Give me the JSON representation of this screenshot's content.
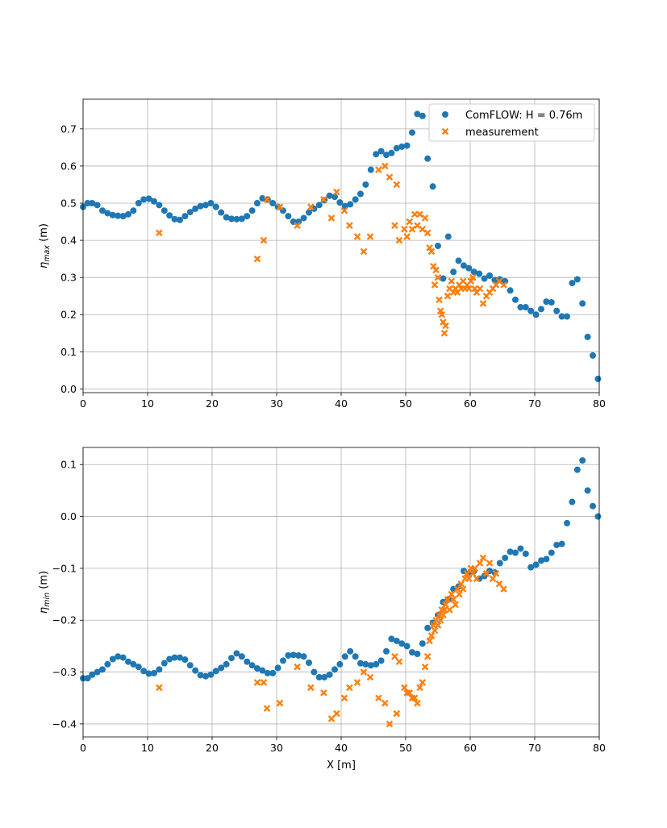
{
  "chart_data": [
    {
      "type": "scatter",
      "ylabel_main": "η",
      "ylabel_sub": "max",
      "ylabel_unit": " (m)",
      "xlabel": "",
      "xlim": [
        0,
        80
      ],
      "ylim": [
        -0.01,
        0.78
      ],
      "xticks": [
        0,
        10,
        20,
        30,
        40,
        50,
        60,
        70,
        80
      ],
      "yticks": [
        0.0,
        0.1,
        0.2,
        0.3,
        0.4,
        0.5,
        0.6,
        0.7
      ],
      "ytick_labels": [
        "0.0",
        "0.1",
        "0.2",
        "0.3",
        "0.4",
        "0.5",
        "0.6",
        "0.7"
      ],
      "grid": true,
      "legend": {
        "placement": "top-right",
        "entries": [
          "ComFLOW: H = 0.76m",
          "measurement"
        ]
      },
      "series": [
        {
          "name": "ComFLOW: H = 0.76m",
          "marker": "circle",
          "color": "#1f77b4",
          "x": [
            0,
            0.7,
            1.4,
            2.2,
            3,
            3.8,
            4.6,
            5.4,
            6.2,
            7,
            7.8,
            8.6,
            9.4,
            10.2,
            11,
            11.8,
            12.6,
            13.4,
            14.2,
            15,
            15.8,
            16.6,
            17.4,
            18.2,
            19,
            19.8,
            20.6,
            21.4,
            22.2,
            23,
            23.8,
            24.6,
            25.4,
            26.2,
            27,
            27.8,
            28.6,
            29.4,
            30.2,
            31,
            31.8,
            32.6,
            33.4,
            34.2,
            35,
            35.8,
            36.6,
            37.4,
            38.2,
            39,
            39.8,
            40.6,
            41.4,
            42.2,
            43,
            43.8,
            44.6,
            45.4,
            46.2,
            47,
            47.8,
            48.6,
            49.4,
            50.2,
            51,
            51.8,
            52.6,
            53.4,
            54.2,
            55,
            55.8,
            56.6,
            57.4,
            58.2,
            59,
            59.8,
            60.6,
            61.4,
            62.2,
            63,
            63.8,
            64.6,
            65.4,
            66.2,
            67,
            67.8,
            68.6,
            69.4,
            70.2,
            71,
            71.8,
            72.6,
            73.4,
            74.2,
            75,
            75.8,
            76.6,
            77.4,
            78.2,
            79,
            79.8
          ],
          "y": [
            0.49,
            0.5,
            0.5,
            0.495,
            0.48,
            0.473,
            0.468,
            0.466,
            0.465,
            0.47,
            0.48,
            0.5,
            0.51,
            0.512,
            0.505,
            0.495,
            0.48,
            0.467,
            0.457,
            0.455,
            0.465,
            0.476,
            0.485,
            0.492,
            0.495,
            0.5,
            0.49,
            0.475,
            0.462,
            0.458,
            0.457,
            0.458,
            0.465,
            0.48,
            0.5,
            0.513,
            0.51,
            0.5,
            0.49,
            0.48,
            0.465,
            0.45,
            0.45,
            0.46,
            0.475,
            0.485,
            0.495,
            0.508,
            0.52,
            0.517,
            0.502,
            0.492,
            0.497,
            0.51,
            0.525,
            0.55,
            0.59,
            0.632,
            0.64,
            0.63,
            0.635,
            0.648,
            0.652,
            0.655,
            0.69,
            0.74,
            0.735,
            0.62,
            0.545,
            0.385,
            0.297,
            0.41,
            0.315,
            0.345,
            0.332,
            0.325,
            0.315,
            0.31,
            0.297,
            0.305,
            0.293,
            0.295,
            0.29,
            0.265,
            0.24,
            0.22,
            0.22,
            0.21,
            0.2,
            0.215,
            0.235,
            0.233,
            0.21,
            0.195,
            0.195,
            0.285,
            0.295,
            0.23,
            0.14,
            0.09,
            0.027
          ]
        },
        {
          "name": "measurement",
          "marker": "x",
          "color": "#ff7f0e",
          "x": [
            11.8,
            27,
            28,
            28.5,
            30.5,
            33.2,
            35.3,
            37.3,
            38.5,
            39.3,
            40.5,
            41.3,
            42.5,
            43.5,
            44.5,
            45.8,
            46.8,
            47.5,
            48.3,
            48.6,
            49,
            49.8,
            50.2,
            50.6,
            51,
            51.4,
            51.8,
            52.2,
            52.6,
            53,
            53.4,
            53.7,
            54,
            54.3,
            54.5,
            54.7,
            55,
            55.2,
            55.4,
            55.6,
            55.8,
            56,
            56.2,
            56.5,
            56.8,
            57.1,
            57.4,
            57.7,
            58,
            58.3,
            58.6,
            58.9,
            59.2,
            59.5,
            59.8,
            60.1,
            60.4,
            60.7,
            61,
            61.5,
            62,
            62.5,
            63,
            63.5,
            64,
            64.5,
            65.2
          ],
          "y": [
            0.42,
            0.35,
            0.4,
            0.51,
            0.49,
            0.44,
            0.49,
            0.51,
            0.46,
            0.53,
            0.48,
            0.44,
            0.41,
            0.37,
            0.41,
            0.59,
            0.6,
            0.57,
            0.44,
            0.55,
            0.4,
            0.43,
            0.41,
            0.45,
            0.43,
            0.47,
            0.44,
            0.47,
            0.43,
            0.46,
            0.42,
            0.38,
            0.37,
            0.33,
            0.28,
            0.32,
            0.3,
            0.24,
            0.21,
            0.2,
            0.18,
            0.15,
            0.17,
            0.25,
            0.27,
            0.29,
            0.26,
            0.27,
            0.26,
            0.28,
            0.27,
            0.29,
            0.27,
            0.28,
            0.27,
            0.29,
            0.3,
            0.27,
            0.26,
            0.27,
            0.23,
            0.25,
            0.26,
            0.27,
            0.28,
            0.29,
            0.28
          ]
        }
      ]
    },
    {
      "type": "scatter",
      "ylabel_main": "η",
      "ylabel_sub": "min",
      "ylabel_unit": " (m)",
      "xlabel": "X [m]",
      "xlim": [
        0,
        80
      ],
      "ylim": [
        -0.425,
        0.133
      ],
      "xticks": [
        0,
        10,
        20,
        30,
        40,
        50,
        60,
        70,
        80
      ],
      "yticks": [
        -0.4,
        -0.3,
        -0.2,
        -0.1,
        0.0,
        0.1
      ],
      "ytick_labels": [
        "−0.4",
        "−0.3",
        "−0.2",
        "−0.1",
        "0.0",
        "0.1"
      ],
      "grid": true,
      "series": [
        {
          "name": "ComFLOW: H = 0.76m",
          "marker": "circle",
          "color": "#1f77b4",
          "x": [
            0,
            0.7,
            1.4,
            2.2,
            3,
            3.8,
            4.6,
            5.4,
            6.2,
            7,
            7.8,
            8.6,
            9.4,
            10.2,
            11,
            11.8,
            12.6,
            13.4,
            14.2,
            15,
            15.8,
            16.6,
            17.4,
            18.2,
            19,
            19.8,
            20.6,
            21.4,
            22.2,
            23,
            23.8,
            24.6,
            25.4,
            26.2,
            27,
            27.8,
            28.6,
            29.4,
            30.2,
            31,
            31.8,
            32.6,
            33.4,
            34.2,
            35,
            35.8,
            36.6,
            37.4,
            38.2,
            39,
            39.8,
            40.6,
            41.4,
            42.2,
            43,
            43.8,
            44.6,
            45.4,
            46.2,
            47,
            47.8,
            48.6,
            49.4,
            50.2,
            51,
            51.8,
            52.6,
            53.4,
            54.2,
            55,
            55.8,
            56.6,
            57.4,
            58.2,
            59,
            59.8,
            60.6,
            61.4,
            62.2,
            63,
            63.8,
            64.6,
            65.4,
            66.2,
            67,
            67.8,
            68.6,
            69.4,
            70.2,
            71,
            71.8,
            72.6,
            73.4,
            74.2,
            75,
            75.8,
            76.6,
            77.4,
            78.2,
            79,
            79.8
          ],
          "y": [
            -0.312,
            -0.312,
            -0.305,
            -0.3,
            -0.295,
            -0.285,
            -0.275,
            -0.27,
            -0.272,
            -0.28,
            -0.285,
            -0.29,
            -0.298,
            -0.303,
            -0.302,
            -0.295,
            -0.283,
            -0.275,
            -0.272,
            -0.272,
            -0.276,
            -0.287,
            -0.297,
            -0.306,
            -0.308,
            -0.305,
            -0.298,
            -0.292,
            -0.285,
            -0.273,
            -0.264,
            -0.27,
            -0.28,
            -0.287,
            -0.293,
            -0.297,
            -0.302,
            -0.302,
            -0.292,
            -0.278,
            -0.268,
            -0.267,
            -0.268,
            -0.27,
            -0.282,
            -0.3,
            -0.31,
            -0.31,
            -0.305,
            -0.295,
            -0.285,
            -0.27,
            -0.26,
            -0.27,
            -0.283,
            -0.285,
            -0.287,
            -0.285,
            -0.278,
            -0.26,
            -0.236,
            -0.24,
            -0.245,
            -0.25,
            -0.262,
            -0.265,
            -0.245,
            -0.215,
            -0.205,
            -0.19,
            -0.165,
            -0.16,
            -0.14,
            -0.135,
            -0.105,
            -0.11,
            -0.105,
            -0.12,
            -0.115,
            -0.105,
            -0.108,
            -0.09,
            -0.08,
            -0.068,
            -0.07,
            -0.062,
            -0.072,
            -0.098,
            -0.093,
            -0.085,
            -0.082,
            -0.07,
            -0.055,
            -0.053,
            -0.013,
            0.028,
            0.09,
            0.108,
            0.05,
            0.02,
            0.0
          ]
        },
        {
          "name": "measurement",
          "marker": "x",
          "color": "#ff7f0e",
          "x": [
            11.8,
            27,
            28,
            28.5,
            30.5,
            33.2,
            35.3,
            37.3,
            38.5,
            39.3,
            40.5,
            41.3,
            42.5,
            43.5,
            44.5,
            45.8,
            46.8,
            47.5,
            48.3,
            48.6,
            49,
            49.8,
            50.2,
            50.6,
            51,
            51.4,
            51.8,
            52.2,
            52.6,
            53,
            53.4,
            53.7,
            54,
            54.3,
            54.5,
            54.7,
            55,
            55.2,
            55.4,
            55.6,
            55.8,
            56,
            56.2,
            56.5,
            56.8,
            57.1,
            57.4,
            57.7,
            58,
            58.3,
            58.6,
            58.9,
            59.2,
            59.5,
            59.8,
            60.1,
            60.4,
            60.7,
            61,
            61.5,
            62,
            62.5,
            63,
            63.5,
            64,
            64.5,
            65.2
          ],
          "y": [
            -0.33,
            -0.32,
            -0.32,
            -0.37,
            -0.36,
            -0.29,
            -0.33,
            -0.34,
            -0.39,
            -0.38,
            -0.35,
            -0.33,
            -0.32,
            -0.3,
            -0.31,
            -0.35,
            -0.36,
            -0.4,
            -0.27,
            -0.38,
            -0.28,
            -0.33,
            -0.34,
            -0.34,
            -0.35,
            -0.35,
            -0.36,
            -0.33,
            -0.32,
            -0.29,
            -0.27,
            -0.24,
            -0.23,
            -0.21,
            -0.22,
            -0.2,
            -0.21,
            -0.19,
            -0.2,
            -0.18,
            -0.19,
            -0.18,
            -0.17,
            -0.16,
            -0.18,
            -0.15,
            -0.16,
            -0.17,
            -0.14,
            -0.15,
            -0.13,
            -0.14,
            -0.12,
            -0.11,
            -0.12,
            -0.1,
            -0.11,
            -0.1,
            -0.12,
            -0.09,
            -0.08,
            -0.11,
            -0.09,
            -0.12,
            -0.11,
            -0.13,
            -0.14
          ]
        }
      ]
    }
  ]
}
